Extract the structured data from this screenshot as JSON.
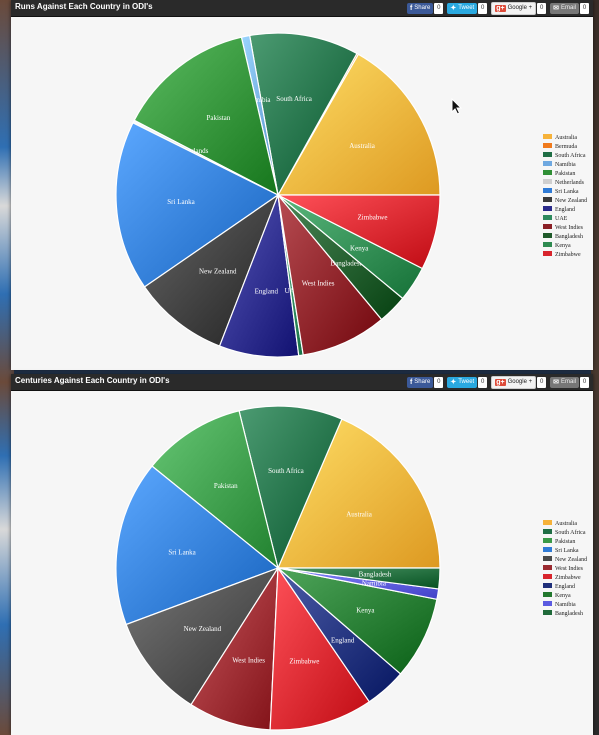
{
  "charts": [
    {
      "title": "Runs Against Each Country in ODI's",
      "share": {
        "facebook": {
          "label": "Share",
          "count": "0"
        },
        "twitter": {
          "label": "Tweet",
          "count": "0"
        },
        "google": {
          "label": "Google +",
          "count": "0"
        },
        "email": {
          "label": "Email",
          "count": "0"
        }
      }
    },
    {
      "title": "Centuries Against Each Country in ODI's",
      "share": {
        "facebook": {
          "label": "Share",
          "count": "0"
        },
        "twitter": {
          "label": "Tweet",
          "count": "0"
        },
        "google": {
          "label": "Google +",
          "count": "0"
        },
        "email": {
          "label": "Email",
          "count": "0"
        }
      }
    }
  ],
  "chart_data": [
    {
      "type": "pie",
      "title": "Runs Against Each Country in ODI's",
      "legend": "right",
      "slices": [
        {
          "name": "Australia",
          "value": 3077,
          "color": "#f6b23a",
          "label_shown": true
        },
        {
          "name": "Bermuda",
          "value": 29,
          "color": "#f07a1c",
          "label_shown": false
        },
        {
          "name": "South Africa",
          "value": 2001,
          "color": "#1f6e45",
          "label_shown": true
        },
        {
          "name": "Namibia",
          "value": 152,
          "color": "#6ea8e0",
          "label_shown": true
        },
        {
          "name": "Pakistan",
          "value": 2526,
          "color": "#2f8f35",
          "label_shown": true
        },
        {
          "name": "Netherlands",
          "value": 52,
          "color": "#cfcfcf",
          "label_shown": true
        },
        {
          "name": "Sri Lanka",
          "value": 3113,
          "color": "#2f7bd6",
          "label_shown": true
        },
        {
          "name": "New Zealand",
          "value": 1750,
          "color": "#3a3a3a",
          "label_shown": true
        },
        {
          "name": "England",
          "value": 1455,
          "color": "#2a2a8a",
          "label_shown": true
        },
        {
          "name": "UAE",
          "value": 81,
          "color": "#2e8a5e",
          "label_shown": true
        },
        {
          "name": "West Indies",
          "value": 1573,
          "color": "#8a1f25",
          "label_shown": true
        },
        {
          "name": "Bangladesh",
          "value": 539,
          "color": "#1f5a2a",
          "label_shown": true
        },
        {
          "name": "Kenya",
          "value": 647,
          "color": "#2e8a50",
          "label_shown": true
        },
        {
          "name": "Zimbabwe",
          "value": 1377,
          "color": "#d8242c",
          "label_shown": true
        }
      ]
    },
    {
      "type": "pie",
      "title": "Centuries Against Each Country in ODI's",
      "legend": "right",
      "slices": [
        {
          "name": "Australia",
          "value": 9,
          "color": "#f6b23a",
          "label_shown": true
        },
        {
          "name": "South Africa",
          "value": 5,
          "color": "#1f6e45",
          "label_shown": true
        },
        {
          "name": "Pakistan",
          "value": 5,
          "color": "#3a9a48",
          "label_shown": true
        },
        {
          "name": "Sri Lanka",
          "value": 8,
          "color": "#2f7bd6",
          "label_shown": true
        },
        {
          "name": "New Zealand",
          "value": 5,
          "color": "#4a4a4a",
          "label_shown": true
        },
        {
          "name": "West Indies",
          "value": 4,
          "color": "#9a2a30",
          "label_shown": true
        },
        {
          "name": "Zimbabwe",
          "value": 5,
          "color": "#d8242c",
          "label_shown": true
        },
        {
          "name": "England",
          "value": 2,
          "color": "#1f2f7a",
          "label_shown": true
        },
        {
          "name": "Kenya",
          "value": 4,
          "color": "#22782e",
          "label_shown": true
        },
        {
          "name": "Namibia",
          "value": 0.5,
          "color": "#5a5ae0",
          "label_shown": true
        },
        {
          "name": "Bangladesh",
          "value": 1,
          "color": "#1f6a3a",
          "label_shown": true
        }
      ]
    }
  ]
}
